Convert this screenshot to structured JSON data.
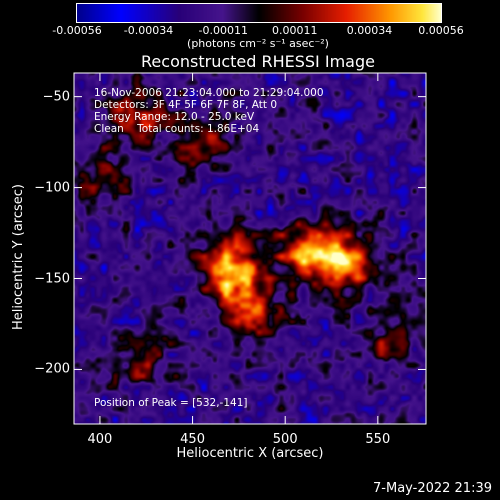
{
  "chart_data": {
    "type": "heatmap",
    "title": "Reconstructed RHESSI Image",
    "xlabel": "Heliocentric X (arcsec)",
    "ylabel": "Heliocentric Y (arcsec)",
    "xlim": [
      386,
      576
    ],
    "ylim": [
      -230,
      -37
    ],
    "x_ticks": [
      "400",
      "450",
      "500",
      "550"
    ],
    "x_tick_values": [
      400,
      450,
      500,
      550
    ],
    "y_ticks": [
      "-50",
      "-100",
      "-150",
      "-200"
    ],
    "y_tick_values": [
      -50,
      -100,
      -150,
      -200
    ],
    "colorbar": {
      "min": -0.00056,
      "max": 0.00056,
      "tick_labels": [
        "-0.00056",
        "-0.00034",
        "-0.00011",
        "0.00011",
        "0.00034",
        "0.00056"
      ],
      "tick_values": [
        -0.00056,
        -0.00034,
        -0.00011,
        0.00011,
        0.00034,
        0.00056
      ],
      "unit_label": "(photons cm⁻² s⁻¹ asec⁻²)"
    },
    "annotations": [
      "16-Nov-2006 21:23:04.000 to 21:29:04.000",
      "Detectors: 3F 4F 5F 6F 7F 8F, Att 0",
      "Energy Range: 12.0 - 25.0 keV",
      "Clean    Total counts: 1.86E+04"
    ],
    "peak_label": "Position of Peak = [532,-141]",
    "peak": {
      "x": 532,
      "y": -141
    },
    "bright_sources": [
      {
        "x": 532,
        "y": -141,
        "level": 1.0
      },
      {
        "x": 512,
        "y": -136,
        "level": 0.85
      },
      {
        "x": 473,
        "y": -153,
        "level": 0.85
      },
      {
        "x": 470,
        "y": -135,
        "level": 0.55
      },
      {
        "x": 485,
        "y": -170,
        "level": 0.55
      },
      {
        "x": 420,
        "y": -60,
        "level": 0.6
      },
      {
        "x": 455,
        "y": -72,
        "level": 0.6
      },
      {
        "x": 400,
        "y": -95,
        "level": 0.45
      },
      {
        "x": 420,
        "y": -195,
        "level": 0.45
      },
      {
        "x": 555,
        "y": -185,
        "level": 0.4
      }
    ]
  },
  "timestamp": "7-May-2022 21:39"
}
